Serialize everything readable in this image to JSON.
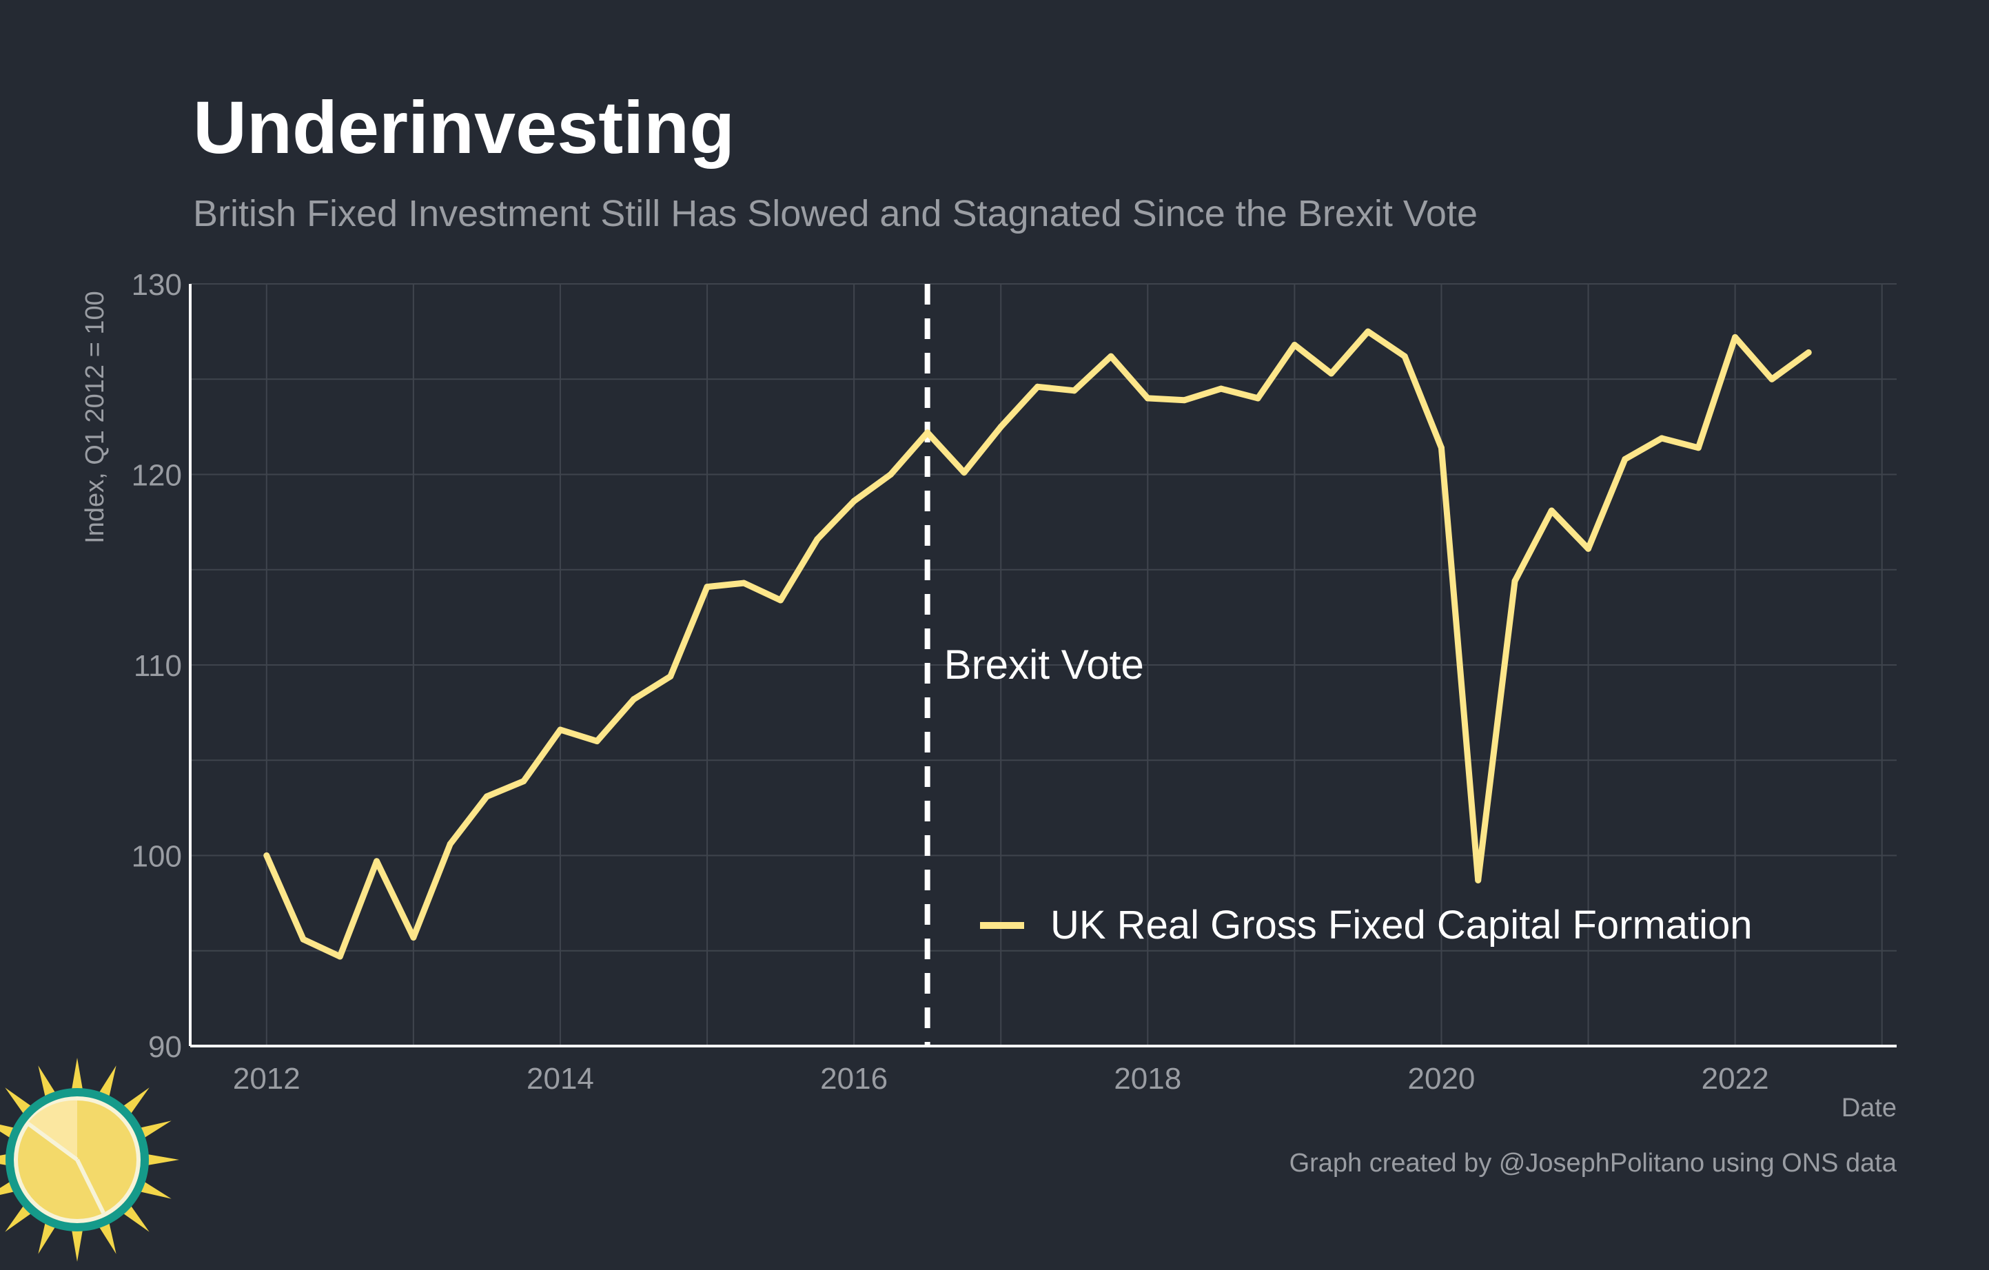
{
  "colors": {
    "background": "#252a33",
    "series": "#fde68a",
    "grid": "#3f444d",
    "axis": "#ffffff",
    "muted_text": "#9a9da3",
    "vline": "#ffffff"
  },
  "logo": {
    "icon": "sun-clock-logo-icon"
  },
  "chart_data": {
    "type": "line",
    "title": "Underinvesting",
    "subtitle": "British Fixed Investment Still Has Slowed and Stagnated Since the Brexit Vote",
    "xlabel": "Date",
    "ylabel": "Index, Q1 2012 = 100",
    "xlim": [
      2011.48,
      2023.1
    ],
    "ylim": [
      90,
      130
    ],
    "y_ticks": [
      90,
      100,
      110,
      120,
      130
    ],
    "x_ticks": [
      2012,
      2014,
      2016,
      2018,
      2020,
      2022
    ],
    "x_tick_labels": [
      "2012",
      "2014",
      "2016",
      "2018",
      "2020",
      "2022"
    ],
    "grid": true,
    "legend_position": "bottom-right-inside",
    "annotation": {
      "x": 2016.5,
      "label": "Brexit Vote",
      "y_label": 110
    },
    "series": [
      {
        "name": "UK Real Gross Fixed Capital Formation",
        "x": [
          2012.0,
          2012.25,
          2012.5,
          2012.75,
          2013.0,
          2013.25,
          2013.5,
          2013.75,
          2014.0,
          2014.25,
          2014.5,
          2014.75,
          2015.0,
          2015.25,
          2015.5,
          2015.75,
          2016.0,
          2016.25,
          2016.5,
          2016.75,
          2017.0,
          2017.25,
          2017.5,
          2017.75,
          2018.0,
          2018.25,
          2018.5,
          2018.75,
          2019.0,
          2019.25,
          2019.5,
          2019.75,
          2020.0,
          2020.25,
          2020.5,
          2020.75,
          2021.0,
          2021.25,
          2021.5,
          2021.75,
          2022.0,
          2022.25,
          2022.5
        ],
        "values": [
          100.0,
          95.6,
          94.7,
          99.7,
          95.7,
          100.6,
          103.1,
          103.9,
          106.6,
          106.0,
          108.2,
          109.4,
          114.1,
          114.3,
          113.4,
          116.6,
          118.6,
          120.0,
          122.2,
          120.1,
          122.5,
          124.6,
          124.4,
          126.2,
          124.0,
          123.9,
          124.5,
          124.0,
          126.8,
          125.3,
          127.5,
          126.2,
          121.4,
          98.7,
          114.4,
          118.1,
          116.1,
          120.8,
          121.9,
          121.4,
          127.2,
          125.0,
          126.4
        ]
      }
    ]
  },
  "caption": "Graph created by @JosephPolitano using ONS data"
}
